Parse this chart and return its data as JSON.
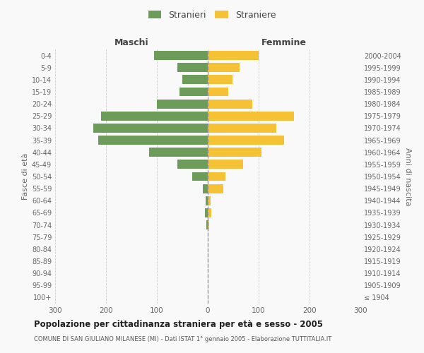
{
  "age_groups": [
    "100+",
    "95-99",
    "90-94",
    "85-89",
    "80-84",
    "75-79",
    "70-74",
    "65-69",
    "60-64",
    "55-59",
    "50-54",
    "45-49",
    "40-44",
    "35-39",
    "30-34",
    "25-29",
    "20-24",
    "15-19",
    "10-14",
    "5-9",
    "0-4"
  ],
  "birth_years": [
    "≤ 1904",
    "1905-1909",
    "1910-1914",
    "1915-1919",
    "1920-1924",
    "1925-1929",
    "1930-1934",
    "1935-1939",
    "1940-1944",
    "1945-1949",
    "1950-1954",
    "1955-1959",
    "1960-1964",
    "1965-1969",
    "1970-1974",
    "1975-1979",
    "1980-1984",
    "1985-1989",
    "1990-1994",
    "1995-1999",
    "2000-2004"
  ],
  "maschi": [
    0,
    0,
    0,
    0,
    0,
    0,
    3,
    5,
    4,
    10,
    30,
    60,
    115,
    215,
    225,
    210,
    100,
    55,
    50,
    60,
    105
  ],
  "femmine": [
    0,
    0,
    0,
    0,
    0,
    0,
    3,
    7,
    5,
    30,
    35,
    70,
    105,
    150,
    135,
    170,
    88,
    40,
    48,
    62,
    100
  ],
  "maschi_color": "#6d9b5a",
  "femmine_color": "#f5c135",
  "background_color": "#f9f9f9",
  "grid_color": "#cccccc",
  "title": "Popolazione per cittadinanza straniera per età e sesso - 2005",
  "subtitle": "COMUNE DI SAN GIULIANO MILANESE (MI) - Dati ISTAT 1° gennaio 2005 - Elaborazione TUTTITALIA.IT",
  "ylabel_left": "Fasce di età",
  "ylabel_right": "Anni di nascita",
  "legend_maschi": "Stranieri",
  "legend_femmine": "Straniere",
  "xlim": 300,
  "maschi_header": "Maschi",
  "femmine_header": "Femmine"
}
